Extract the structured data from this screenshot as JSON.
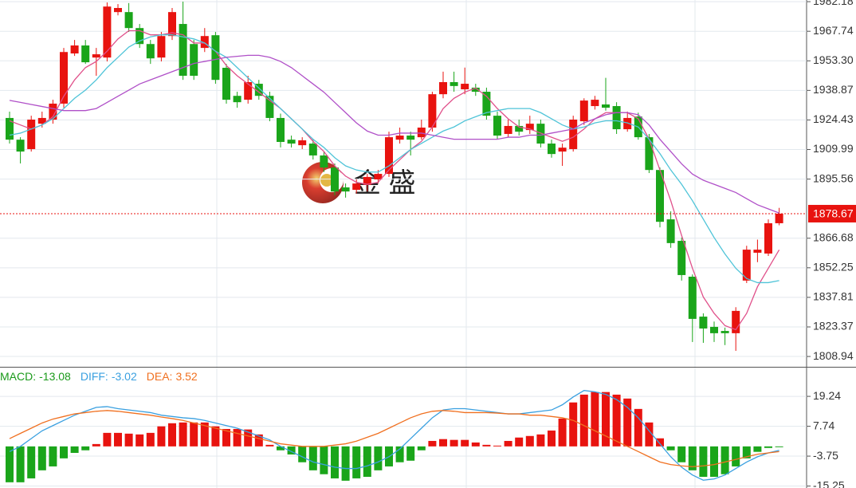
{
  "watermark": "金 盛",
  "chart_data": [
    {
      "type": "candlestick",
      "up_color": "#e8130f",
      "down_color": "#1aa51a",
      "open": [
        1925.4,
        1914.8,
        1910.2,
        1922.6,
        1924.6,
        1932.4,
        1956.9,
        1960.8,
        1954.9,
        1954.9,
        1977.1,
        1977.1,
        1969.3,
        1961.5,
        1954.9,
        1965.4,
        1971.3,
        1961.5,
        1959.6,
        1965.8,
        1949.9,
        1936.2,
        1934.3,
        1942.1,
        1936.2,
        1925.4,
        1914.8,
        1912.1,
        1912.9,
        1907.1,
        1901.2,
        1891.5,
        1890.3,
        1892.7,
        1895.4,
        1898.1,
        1914.8,
        1916.8,
        1916.0,
        1920.7,
        1937.0,
        1942.9,
        1939.4,
        1940.2,
        1938.2,
        1926.5,
        1917.6,
        1921.5,
        1919.5,
        1922.6,
        1912.9,
        1909.0,
        1910.2,
        1923.8,
        1931.2,
        1932.0,
        1931.2,
        1919.9,
        1926.1,
        1916.0,
        1900.0,
        1875.9,
        1865.4,
        1847.9,
        1828.4,
        1823.4,
        1821.4,
        1820.3,
        1846.0,
        1859.6,
        1859.2,
        1874.0
      ],
      "high": [
        1928.5,
        1916.0,
        1926.5,
        1928.5,
        1934.3,
        1959.6,
        1963.5,
        1963.5,
        1959.6,
        1981.8,
        1981.0,
        1981.5,
        1971.3,
        1963.5,
        1967.4,
        1979.1,
        1982.2,
        1963.5,
        1969.3,
        1967.4,
        1951.8,
        1938.2,
        1946.0,
        1944.0,
        1938.2,
        1927.5,
        1916.8,
        1916.0,
        1914.8,
        1909.0,
        1903.2,
        1893.4,
        1895.4,
        1898.1,
        1900.0,
        1918.7,
        1920.7,
        1918.7,
        1924.6,
        1938.2,
        1948.0,
        1948.0,
        1950.0,
        1942.1,
        1940.2,
        1928.5,
        1924.6,
        1924.6,
        1926.5,
        1924.6,
        1914.8,
        1912.9,
        1926.5,
        1935.0,
        1936.2,
        1945.0,
        1933.1,
        1928.5,
        1928.0,
        1917.6,
        1901.2,
        1879.8,
        1867.0,
        1849.0,
        1830.0,
        1826.0,
        1823.0,
        1833.0,
        1863.0,
        1866.0,
        1875.9,
        1881.5
      ],
      "low": [
        1912.9,
        1903.2,
        1909.0,
        1920.7,
        1922.6,
        1930.4,
        1955.7,
        1951.8,
        1946.0,
        1953.0,
        1975.5,
        1967.4,
        1959.6,
        1951.8,
        1953.0,
        1963.5,
        1944.0,
        1944.0,
        1957.6,
        1942.1,
        1932.4,
        1930.4,
        1932.4,
        1934.3,
        1923.8,
        1911.0,
        1911.0,
        1910.2,
        1905.1,
        1899.0,
        1887.6,
        1886.5,
        1888.5,
        1889.5,
        1893.4,
        1896.6,
        1912.9,
        1907.1,
        1914.8,
        1918.7,
        1935.0,
        1938.2,
        1937.0,
        1936.2,
        1924.6,
        1915.0,
        1916.0,
        1916.8,
        1917.6,
        1911.0,
        1906.0,
        1902.0,
        1909.0,
        1922.0,
        1929.5,
        1929.0,
        1917.6,
        1918.7,
        1914.8,
        1898.5,
        1872.0,
        1862.0,
        1846.0,
        1816.0,
        1815.6,
        1816.0,
        1814.5,
        1811.7,
        1844.8,
        1855.0,
        1858.0,
        1873.0
      ],
      "close": [
        1914.8,
        1909.0,
        1924.6,
        1925.4,
        1932.4,
        1957.6,
        1960.8,
        1952.6,
        1956.5,
        1979.8,
        1979.1,
        1969.3,
        1961.5,
        1954.5,
        1965.4,
        1977.1,
        1946.0,
        1946.0,
        1965.4,
        1944.0,
        1934.3,
        1933.1,
        1942.9,
        1936.2,
        1925.4,
        1913.7,
        1912.9,
        1914.5,
        1907.1,
        1901.2,
        1889.5,
        1889.5,
        1893.4,
        1896.6,
        1898.1,
        1916.0,
        1916.8,
        1914.8,
        1920.7,
        1937.0,
        1942.9,
        1941.0,
        1942.1,
        1938.2,
        1926.5,
        1916.8,
        1921.5,
        1918.7,
        1922.6,
        1912.9,
        1907.8,
        1910.9,
        1924.6,
        1933.9,
        1934.3,
        1930.4,
        1919.9,
        1925.4,
        1916.0,
        1900.0,
        1874.7,
        1864.3,
        1848.7,
        1827.3,
        1822.6,
        1820.3,
        1820.3,
        1831.2,
        1861.1,
        1861.1,
        1874.0,
        1878.67
      ],
      "series": [
        {
          "color": "#e0508a",
          "values": [
            1924,
            1922,
            1920,
            1922,
            1926,
            1936,
            1944,
            1950,
            1953,
            1958,
            1964,
            1968,
            1968,
            1966,
            1966,
            1967,
            1966,
            1962,
            1962,
            1958,
            1951,
            1946,
            1942,
            1938,
            1934,
            1930,
            1925,
            1920,
            1914,
            1909,
            1902,
            1897,
            1894,
            1893,
            1894,
            1900,
            1905,
            1910,
            1914,
            1921,
            1930,
            1935,
            1938,
            1940,
            1936,
            1930,
            1925,
            1921,
            1920,
            1918,
            1916,
            1914,
            1916,
            1920,
            1925,
            1928,
            1928,
            1928,
            1925,
            1915,
            1900,
            1885,
            1868,
            1852,
            1838,
            1830,
            1824,
            1822,
            1830,
            1843,
            1852,
            1861
          ]
        },
        {
          "color": "#4fc4d8",
          "values": [
            1917,
            1918,
            1920,
            1922,
            1925,
            1930,
            1935,
            1939,
            1944,
            1950,
            1955,
            1960,
            1963,
            1965,
            1966,
            1966,
            1965,
            1964,
            1962,
            1958,
            1955,
            1950,
            1945,
            1940,
            1935,
            1930,
            1925,
            1920,
            1915,
            1911,
            1906,
            1902,
            1900,
            1899,
            1899,
            1902,
            1906,
            1910,
            1913,
            1916,
            1919,
            1921,
            1924,
            1926,
            1928,
            1929,
            1930,
            1930,
            1930,
            1928,
            1925,
            1922,
            1920,
            1921,
            1923,
            1924,
            1924,
            1923,
            1921,
            1915,
            1908,
            1900,
            1893,
            1885,
            1876,
            1867,
            1859,
            1852,
            1847,
            1845,
            1845,
            1846
          ]
        },
        {
          "color": "#b050c8",
          "values": [
            1934,
            1933,
            1932,
            1931,
            1930,
            1929,
            1929,
            1929,
            1930,
            1933,
            1936,
            1939,
            1942,
            1944,
            1946,
            1948,
            1950,
            1952,
            1953,
            1954,
            1955,
            1955.5,
            1956,
            1956,
            1955,
            1953,
            1950,
            1946,
            1942,
            1938,
            1933,
            1928,
            1923,
            1919,
            1917,
            1917,
            1918,
            1918,
            1918,
            1917,
            1916,
            1915,
            1915,
            1915,
            1915,
            1915,
            1916,
            1916,
            1917,
            1917,
            1918,
            1919,
            1920,
            1923,
            1925,
            1927,
            1928,
            1928,
            1927,
            1922,
            1915,
            1909,
            1903,
            1898,
            1895,
            1893,
            1891,
            1889,
            1886,
            1883,
            1881,
            1879
          ]
        }
      ],
      "last_price": 1878.67,
      "last_price_color": "#e8130f",
      "ylim": [
        1803.9,
        1983.0
      ],
      "yticks": [
        1982.18,
        1967.74,
        {
          "value": 1953.3,
          "label": "1953.30"
        },
        1938.87,
        1924.43,
        1909.99,
        1895.56,
        1866.68,
        1852.25,
        1837.81,
        1823.37,
        1808.94
      ],
      "grid": true
    },
    {
      "type": "macd",
      "up_color": "#e8130f",
      "down_color": "#1aa51a",
      "indicators": [
        {
          "name": "MACD:",
          "value": -13.08,
          "color": "#1a9a1a"
        },
        {
          "name": "DIFF:",
          "value": -3.02,
          "color": "#3aa0e0"
        },
        {
          "name": "DEA:",
          "value": 3.52,
          "color": "#f07020"
        }
      ],
      "values": [
        -13.8,
        -13.8,
        -12.3,
        -9.2,
        -7.7,
        -4.6,
        -2.5,
        -1.5,
        0.9,
        5.2,
        5.2,
        4.9,
        4.6,
        5.2,
        7.7,
        8.9,
        9.2,
        9.2,
        9.2,
        7.7,
        6.7,
        6.7,
        6.5,
        4.6,
        0.6,
        -1.5,
        -3.1,
        -6.1,
        -9.2,
        -10.7,
        -12.3,
        -13.2,
        -12.3,
        -11.7,
        -9.2,
        -7.7,
        -6.1,
        -5.5,
        -1.5,
        2.1,
        2.8,
        2.5,
        2.5,
        1.5,
        0.6,
        0.3,
        2.1,
        3.4,
        4.0,
        4.6,
        6.1,
        10.7,
        16.9,
        19.9,
        20.9,
        20.9,
        19.9,
        18.4,
        14.4,
        9.2,
        3.1,
        -1.5,
        -6.1,
        -9.2,
        -11.7,
        -11.7,
        -10.7,
        -7.7,
        -4.6,
        -2.1,
        -0.6,
        -0.3
      ],
      "series": [
        {
          "color": "#3aa0e0",
          "values": [
            -2,
            0,
            3,
            6,
            8,
            10,
            12,
            13.5,
            15,
            15.3,
            14.5,
            14,
            13.5,
            13,
            12,
            11.5,
            11,
            10.7,
            10,
            9,
            8,
            7,
            5.5,
            4,
            2.5,
            0,
            -2,
            -4,
            -6,
            -7,
            -8,
            -8.5,
            -8.5,
            -7.5,
            -6,
            -4,
            -1,
            3,
            7,
            11,
            14,
            14.5,
            14.5,
            14,
            13.5,
            13,
            12.5,
            12.5,
            13,
            13.5,
            14,
            16,
            19,
            21.5,
            21,
            20,
            18,
            15,
            11,
            6,
            1,
            -4,
            -8,
            -11,
            -13,
            -12.5,
            -11,
            -8.5,
            -6,
            -4,
            -2.5,
            -1.5
          ]
        },
        {
          "color": "#f07020",
          "values": [
            3,
            5,
            7,
            9,
            10.5,
            11.5,
            12.5,
            13,
            13.5,
            13.8,
            13.5,
            13,
            12.5,
            12,
            11.3,
            10.7,
            10,
            9,
            8,
            7,
            6,
            5,
            4,
            3,
            2,
            1,
            0.5,
            0,
            0,
            0,
            0.5,
            1,
            2,
            3.5,
            5,
            7,
            9,
            11,
            12.5,
            13.5,
            13.8,
            13.5,
            13,
            13,
            13,
            12.8,
            12.5,
            12.5,
            12,
            12,
            11.5,
            11,
            10,
            8,
            6,
            4,
            2,
            0,
            -2,
            -4,
            -6,
            -7,
            -7.5,
            -7.8,
            -7.5,
            -7,
            -6,
            -5,
            -4,
            -3,
            -2.5,
            -2
          ]
        }
      ],
      "ylim": [
        -16.0,
        30.3
      ],
      "yticks": [
        19.24,
        7.74,
        -3.75,
        -15.25
      ],
      "grid": true
    }
  ]
}
